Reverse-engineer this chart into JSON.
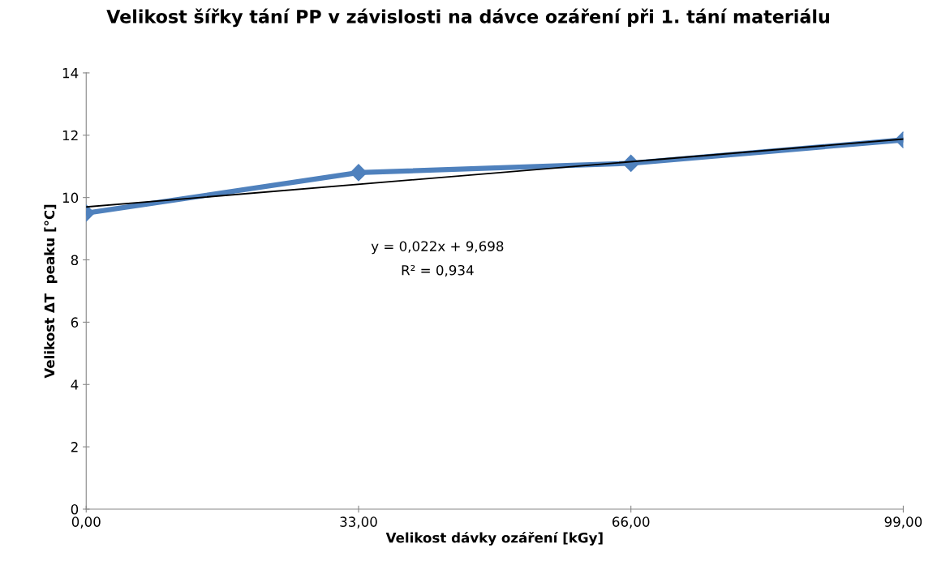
{
  "chart_data": {
    "type": "line",
    "title": "Velikost šířky tání PP v závislosti na dávce ozáření při 1. tání materiálu",
    "xlabel": "Velikost dávky ozáření [kGy]",
    "ylabel": "Velikost ΔT  peaku [°C]",
    "x": [
      0,
      33,
      66,
      99
    ],
    "series": [
      {
        "color": "#4f81bd",
        "values": [
          9.5,
          10.8,
          11.1,
          11.85
        ],
        "marker": "diamond"
      },
      {
        "type": "line",
        "color": "#000000",
        "x": [
          0,
          99
        ],
        "values": [
          9.698,
          11.876
        ],
        "marker": "none"
      }
    ],
    "xlim": [
      0,
      99
    ],
    "xticks": [
      {
        "value": 0,
        "label": "0,00"
      },
      {
        "value": 33,
        "label": "33,00"
      },
      {
        "value": 66,
        "label": "66,00"
      },
      {
        "value": 99,
        "label": "99,00"
      }
    ],
    "ylim": [
      0,
      14
    ],
    "yticks": [
      0,
      2,
      4,
      6,
      8,
      10,
      12,
      14
    ],
    "annotations": [
      "y = 0,022x + 9,698",
      "R² = 0,934"
    ],
    "grid": false,
    "legend": false
  }
}
